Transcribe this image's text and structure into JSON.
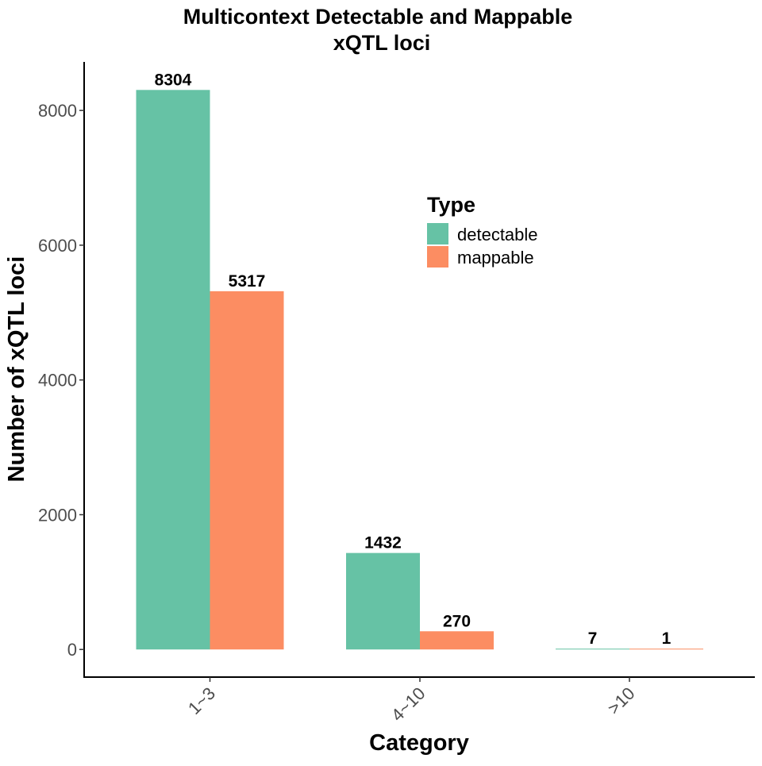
{
  "chart_data": {
    "type": "bar",
    "title_line1": "Multicontext Detectable and Mappable",
    "title_line2": "xQTL loci",
    "xlabel": "Category",
    "ylabel": "Number of xQTL loci",
    "categories": [
      "1~3",
      "4~10",
      ">10"
    ],
    "series": [
      {
        "name": "detectable",
        "values": [
          8304,
          1432,
          7
        ],
        "color": "#66c2a5"
      },
      {
        "name": "mappable",
        "values": [
          5317,
          270,
          1
        ],
        "color": "#fc8d62"
      }
    ],
    "yticks": [
      0,
      2000,
      4000,
      6000,
      8000
    ],
    "ylim": [
      -410,
      8720
    ],
    "legend": {
      "title": "Type",
      "placement": "inside-top-right"
    },
    "grid": false
  }
}
